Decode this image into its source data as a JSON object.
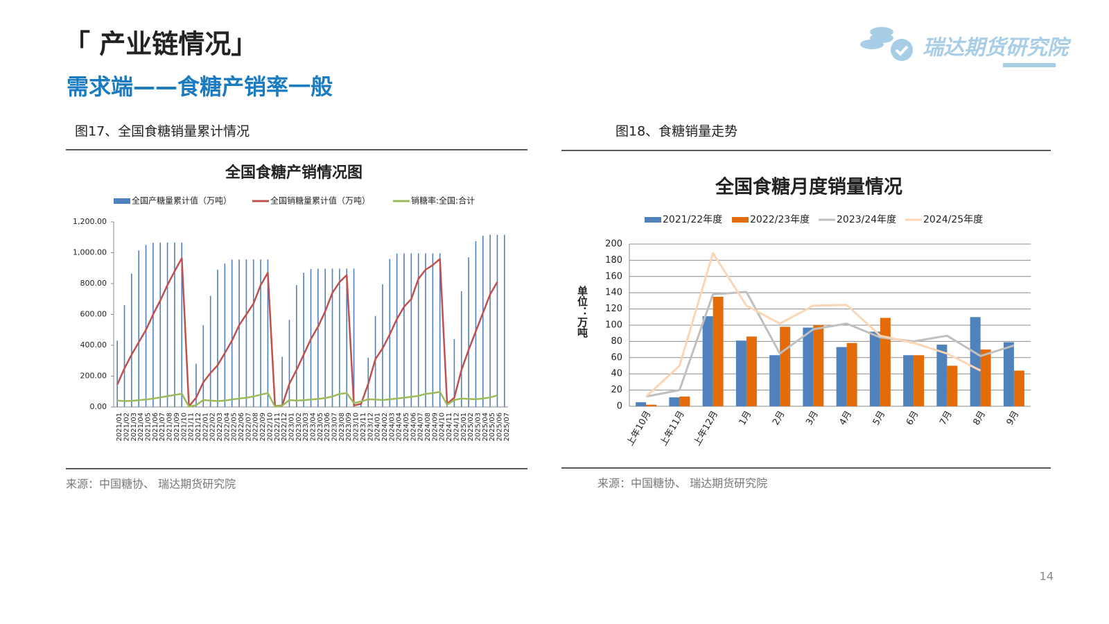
{
  "slide": {
    "title": "「 产业链情况」",
    "subtitle": "需求端——食糖产销率一般",
    "logo": "瑞达期货研究院",
    "figures": [
      {
        "caption": "图17、全国食糖销量累计情况",
        "source": "来源：中国糖协、 瑞达期货研究院"
      },
      {
        "caption": "图18、食糖销量走势",
        "source": "来源：中国糖协、 瑞达期货研究院"
      }
    ],
    "page_number": "14"
  },
  "chart_data": [
    {
      "type": "combo",
      "title": "全国食糖产销情况图",
      "categories": [
        "2021/01",
        "2021/02",
        "2021/03",
        "2021/04",
        "2021/05",
        "2021/06",
        "2021/07",
        "2021/08",
        "2021/09",
        "2021/10",
        "2021/11",
        "2021/12",
        "2022/01",
        "2022/02",
        "2022/03",
        "2022/04",
        "2022/05",
        "2022/06",
        "2022/07",
        "2022/08",
        "2022/09",
        "2022/10",
        "2022/11",
        "2022/12",
        "2023/01",
        "2023/02",
        "2023/03",
        "2023/04",
        "2023/05",
        "2023/06",
        "2023/07",
        "2023/08",
        "2023/09",
        "2023/10",
        "2023/11",
        "2023/12",
        "2024/01",
        "2024/02",
        "2024/03",
        "2024/04",
        "2024/05",
        "2024/06",
        "2024/07",
        "2024/08",
        "2024/09",
        "2024/10",
        "2024/11",
        "2024/12",
        "2025/01",
        "2025/02",
        "2025/03",
        "2025/04",
        "2025/05",
        "2025/06",
        "2025/07"
      ],
      "series": [
        {
          "name": "全国产糖量累计值（万吨）",
          "type": "bar",
          "color": "#4f81bd",
          "values": [
            430,
            660,
            865,
            1015,
            1050,
            1065,
            1066,
            1066,
            1066,
            1066,
            75,
            280,
            530,
            720,
            890,
            930,
            955,
            956,
            956,
            956,
            956,
            956,
            10,
            325,
            565,
            790,
            870,
            895,
            897,
            897,
            897,
            897,
            897,
            897,
            20,
            320,
            590,
            795,
            960,
            995,
            996,
            996,
            996,
            996,
            996,
            996,
            20,
            440,
            750,
            970,
            1075,
            1110,
            1116,
            1116,
            1116
          ]
        },
        {
          "name": "全国销糖量累计值（万吨）",
          "type": "line",
          "color": "#c0504d",
          "values": [
            145,
            250,
            340,
            420,
            500,
            600,
            690,
            790,
            880,
            965,
            5,
            60,
            160,
            220,
            270,
            350,
            430,
            530,
            600,
            670,
            790,
            870,
            5,
            10,
            150,
            240,
            340,
            440,
            520,
            620,
            740,
            810,
            855,
            10,
            20,
            150,
            310,
            380,
            470,
            570,
            650,
            700,
            830,
            890,
            920,
            960,
            20,
            60,
            240,
            370,
            490,
            610,
            730,
            810,
            null
          ]
        },
        {
          "name": "销糖率:全国:合计",
          "type": "line",
          "color": "#9bbb59",
          "values": [
            42,
            38,
            40,
            44,
            48,
            55,
            62,
            70,
            78,
            86,
            2,
            12,
            45,
            42,
            38,
            42,
            48,
            55,
            60,
            68,
            80,
            90,
            2,
            8,
            45,
            42,
            44,
            48,
            52,
            58,
            68,
            85,
            90,
            25,
            35,
            50,
            48,
            45,
            50,
            55,
            60,
            66,
            72,
            85,
            90,
            98,
            15,
            45,
            55,
            52,
            50,
            55,
            62,
            75,
            null
          ]
        }
      ],
      "ylim": [
        0,
        1200
      ],
      "yticks": [
        {
          "value": 0,
          "label": "0.00"
        },
        {
          "value": 200,
          "label": "200.00"
        },
        {
          "value": 400,
          "label": "400.00"
        },
        {
          "value": 600,
          "label": "600.00"
        },
        {
          "value": 800,
          "label": "800.00"
        },
        {
          "value": 1000,
          "label": "1,000.00"
        },
        {
          "value": 1200,
          "label": "1,200.00"
        }
      ],
      "grid": false,
      "legend": "top"
    },
    {
      "type": "combo",
      "title": "全国食糖月度销量情况",
      "ylabel": "单位：万吨",
      "categories": [
        "上年10月",
        "上年11月",
        "上年12月",
        "1月",
        "2月",
        "3月",
        "4月",
        "5月",
        "6月",
        "7月",
        "8月",
        "9月"
      ],
      "series": [
        {
          "name": "2021/22年度",
          "type": "bar",
          "color": "#4f81bd",
          "values": [
            5,
            11,
            111,
            81,
            63,
            97,
            73,
            92,
            63,
            76,
            110,
            79
          ]
        },
        {
          "name": "2022/23年度",
          "type": "bar",
          "color": "#e36c09",
          "values": [
            2,
            12,
            135,
            86,
            98,
            100,
            78,
            109,
            63,
            50,
            70,
            44
          ]
        },
        {
          "name": "2023/24年度",
          "type": "line",
          "color": "#bfbfbf",
          "values": [
            12,
            20,
            138,
            141,
            65,
            95,
            102,
            85,
            80,
            87,
            62,
            75
          ]
        },
        {
          "name": "2024/25年度",
          "type": "line",
          "color": "#fcd5b5",
          "values": [
            12,
            50,
            189,
            124,
            102,
            124,
            125,
            87,
            78,
            65,
            44,
            null
          ]
        }
      ],
      "ylim": [
        0,
        200
      ],
      "yticks": [
        0,
        20,
        40,
        60,
        80,
        100,
        120,
        140,
        160,
        180,
        200
      ],
      "grid": true,
      "legend": "top"
    }
  ]
}
